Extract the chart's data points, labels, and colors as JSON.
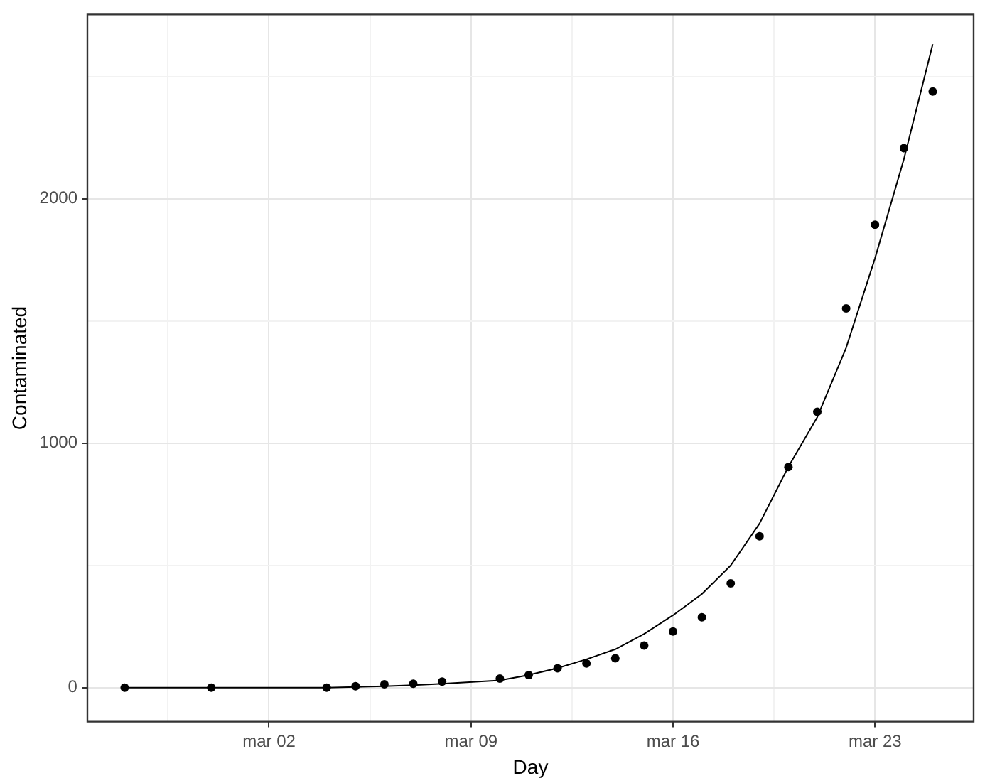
{
  "chart_data": {
    "type": "scatter",
    "xlabel": "Day",
    "ylabel": "Contaminated",
    "xlim": [
      "--02-24T17:00",
      "--03-26T10:00"
    ],
    "xticks": [
      {
        "value": "--02-27T12:00",
        "label": null
      },
      {
        "value": "--03-02",
        "label": "mar 02"
      },
      {
        "value": "--03-05T12:00",
        "label": null
      },
      {
        "value": "--03-09",
        "label": "mar 09"
      },
      {
        "value": "--03-12T12:00",
        "label": null
      },
      {
        "value": "--03-16",
        "label": "mar 16"
      },
      {
        "value": "--03-19T12:00",
        "label": null
      },
      {
        "value": "--03-23",
        "label": "mar 23"
      }
    ],
    "ylim": [
      -139,
      2754
    ],
    "yticks": [
      0,
      {
        "value": 500,
        "label": null
      },
      1000,
      {
        "value": 1500,
        "label": null
      },
      2000,
      {
        "value": 2500,
        "label": null
      }
    ],
    "grid": true,
    "legend": false,
    "series": [
      {
        "color": "#000000",
        "marker": "circle",
        "x": [
          "--02-26",
          "--02-29",
          "--03-04",
          "--03-05",
          "--03-06",
          "--03-07",
          "--03-08",
          "--03-10",
          "--03-11",
          "--03-12",
          "--03-13",
          "--03-14",
          "--03-15",
          "--03-16",
          "--03-17",
          "--03-18",
          "--03-19",
          "--03-20",
          "--03-21",
          "--03-22",
          "--03-23",
          "--03-24",
          "--03-25"
        ],
        "values": [
          0,
          0,
          0,
          6,
          14,
          16,
          25,
          37,
          52,
          79,
          99,
          120,
          172,
          230,
          288,
          427,
          619,
          903,
          1129,
          1552,
          1894,
          2207,
          2439
        ]
      },
      {
        "type": "line",
        "color": "#000000",
        "marker": "none",
        "line_style": "solid",
        "x": [
          "--02-26",
          "--02-29",
          "--03-04",
          "--03-05",
          "--03-06",
          "--03-07",
          "--03-08",
          "--03-10",
          "--03-11",
          "--03-12",
          "--03-13",
          "--03-14",
          "--03-15",
          "--03-16",
          "--03-17",
          "--03-18",
          "--03-19",
          "--03-20",
          "--03-21",
          "--03-22",
          "--03-23",
          "--03-24",
          "--03-25"
        ],
        "values": [
          0,
          0,
          0,
          3,
          6,
          10,
          16,
          30,
          52,
          80,
          116,
          157,
          220,
          296,
          383,
          500,
          672,
          904,
          1107,
          1391,
          1757,
          2162,
          2632
        ]
      }
    ]
  }
}
